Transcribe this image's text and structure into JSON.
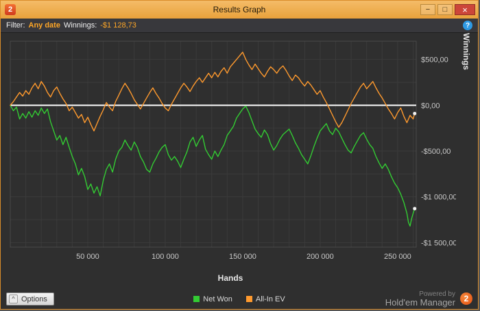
{
  "window": {
    "title": "Results Graph",
    "logo": "2",
    "buttons": {
      "minimize": "−",
      "maximize": "□",
      "close": "×"
    }
  },
  "filter_bar": {
    "filter_label": "Filter:",
    "date_value": "Any date",
    "winnings_label": "Winnings:",
    "winnings_value": "-$1 128,73",
    "help_icon": "?"
  },
  "chart_data": {
    "type": "line",
    "title": "",
    "xlabel": "Hands",
    "ylabel": "Winnings",
    "xlim": [
      0,
      262000
    ],
    "ylim": [
      -1550,
      700
    ],
    "grid": {
      "x_step": 10000,
      "y_step": 250,
      "color": "#3b3b3b"
    },
    "zero_line": {
      "value": 0,
      "color": "#ffffff"
    },
    "legend_position": "bottom",
    "x_ticks": [
      {
        "value": 50000,
        "label": "50 000"
      },
      {
        "value": 100000,
        "label": "100 000"
      },
      {
        "value": 150000,
        "label": "150 000"
      },
      {
        "value": 200000,
        "label": "200 000"
      },
      {
        "value": 250000,
        "label": "250 000"
      }
    ],
    "y_ticks": [
      {
        "value": 500,
        "label": "$500,00"
      },
      {
        "value": 0,
        "label": "$0,00"
      },
      {
        "value": -500,
        "label": "-$500,00"
      },
      {
        "value": -1000,
        "label": "-$1 000,00"
      },
      {
        "value": -1500,
        "label": "-$1 500,00"
      }
    ],
    "series": [
      {
        "name": "Net Won",
        "color": "#33cc33",
        "final_value": -1128.73,
        "points": [
          [
            0,
            0
          ],
          [
            2000,
            -60
          ],
          [
            4000,
            -20
          ],
          [
            6000,
            -150
          ],
          [
            8000,
            -90
          ],
          [
            10000,
            -140
          ],
          [
            12000,
            -70
          ],
          [
            14000,
            -130
          ],
          [
            16000,
            -60
          ],
          [
            18000,
            -110
          ],
          [
            20000,
            -30
          ],
          [
            22000,
            -90
          ],
          [
            24000,
            -40
          ],
          [
            26000,
            -180
          ],
          [
            28000,
            -280
          ],
          [
            30000,
            -380
          ],
          [
            32000,
            -330
          ],
          [
            34000,
            -430
          ],
          [
            36000,
            -350
          ],
          [
            38000,
            -460
          ],
          [
            40000,
            -560
          ],
          [
            42000,
            -640
          ],
          [
            44000,
            -760
          ],
          [
            46000,
            -690
          ],
          [
            48000,
            -780
          ],
          [
            50000,
            -920
          ],
          [
            52000,
            -860
          ],
          [
            54000,
            -960
          ],
          [
            56000,
            -890
          ],
          [
            58000,
            -990
          ],
          [
            60000,
            -820
          ],
          [
            62000,
            -700
          ],
          [
            64000,
            -640
          ],
          [
            66000,
            -730
          ],
          [
            68000,
            -590
          ],
          [
            70000,
            -500
          ],
          [
            72000,
            -460
          ],
          [
            74000,
            -380
          ],
          [
            76000,
            -440
          ],
          [
            78000,
            -490
          ],
          [
            80000,
            -400
          ],
          [
            82000,
            -460
          ],
          [
            84000,
            -560
          ],
          [
            86000,
            -620
          ],
          [
            88000,
            -700
          ],
          [
            90000,
            -730
          ],
          [
            92000,
            -640
          ],
          [
            94000,
            -580
          ],
          [
            96000,
            -510
          ],
          [
            98000,
            -460
          ],
          [
            100000,
            -430
          ],
          [
            102000,
            -540
          ],
          [
            104000,
            -600
          ],
          [
            106000,
            -560
          ],
          [
            108000,
            -610
          ],
          [
            110000,
            -680
          ],
          [
            112000,
            -590
          ],
          [
            114000,
            -510
          ],
          [
            116000,
            -400
          ],
          [
            118000,
            -350
          ],
          [
            120000,
            -450
          ],
          [
            122000,
            -380
          ],
          [
            124000,
            -330
          ],
          [
            126000,
            -480
          ],
          [
            128000,
            -540
          ],
          [
            130000,
            -590
          ],
          [
            132000,
            -500
          ],
          [
            134000,
            -560
          ],
          [
            136000,
            -490
          ],
          [
            138000,
            -430
          ],
          [
            140000,
            -330
          ],
          [
            142000,
            -280
          ],
          [
            144000,
            -230
          ],
          [
            146000,
            -140
          ],
          [
            148000,
            -90
          ],
          [
            150000,
            -40
          ],
          [
            152000,
            -10
          ],
          [
            154000,
            -80
          ],
          [
            156000,
            -170
          ],
          [
            158000,
            -260
          ],
          [
            160000,
            -310
          ],
          [
            162000,
            -350
          ],
          [
            164000,
            -270
          ],
          [
            166000,
            -320
          ],
          [
            168000,
            -420
          ],
          [
            170000,
            -490
          ],
          [
            172000,
            -440
          ],
          [
            174000,
            -370
          ],
          [
            176000,
            -320
          ],
          [
            178000,
            -290
          ],
          [
            180000,
            -260
          ],
          [
            182000,
            -330
          ],
          [
            184000,
            -410
          ],
          [
            186000,
            -470
          ],
          [
            188000,
            -540
          ],
          [
            190000,
            -590
          ],
          [
            192000,
            -640
          ],
          [
            194000,
            -550
          ],
          [
            196000,
            -450
          ],
          [
            198000,
            -360
          ],
          [
            200000,
            -280
          ],
          [
            202000,
            -240
          ],
          [
            204000,
            -200
          ],
          [
            206000,
            -280
          ],
          [
            208000,
            -320
          ],
          [
            210000,
            -250
          ],
          [
            212000,
            -290
          ],
          [
            214000,
            -360
          ],
          [
            216000,
            -430
          ],
          [
            218000,
            -490
          ],
          [
            220000,
            -520
          ],
          [
            222000,
            -450
          ],
          [
            224000,
            -390
          ],
          [
            226000,
            -330
          ],
          [
            228000,
            -300
          ],
          [
            230000,
            -370
          ],
          [
            232000,
            -430
          ],
          [
            234000,
            -470
          ],
          [
            236000,
            -560
          ],
          [
            238000,
            -630
          ],
          [
            240000,
            -690
          ],
          [
            242000,
            -640
          ],
          [
            244000,
            -700
          ],
          [
            246000,
            -780
          ],
          [
            248000,
            -850
          ],
          [
            250000,
            -900
          ],
          [
            252000,
            -970
          ],
          [
            254000,
            -1060
          ],
          [
            256000,
            -1180
          ],
          [
            257000,
            -1280
          ],
          [
            258000,
            -1320
          ],
          [
            259000,
            -1240
          ],
          [
            260000,
            -1180
          ],
          [
            261000,
            -1128.73
          ]
        ]
      },
      {
        "name": "All-In EV",
        "color": "#ff9a2e",
        "final_value": -90,
        "points": [
          [
            0,
            0
          ],
          [
            2000,
            40
          ],
          [
            4000,
            90
          ],
          [
            6000,
            140
          ],
          [
            8000,
            100
          ],
          [
            10000,
            160
          ],
          [
            12000,
            120
          ],
          [
            14000,
            190
          ],
          [
            16000,
            240
          ],
          [
            18000,
            180
          ],
          [
            20000,
            260
          ],
          [
            22000,
            210
          ],
          [
            24000,
            140
          ],
          [
            26000,
            90
          ],
          [
            28000,
            160
          ],
          [
            30000,
            200
          ],
          [
            32000,
            130
          ],
          [
            34000,
            70
          ],
          [
            36000,
            20
          ],
          [
            38000,
            -60
          ],
          [
            40000,
            -20
          ],
          [
            42000,
            -80
          ],
          [
            44000,
            -140
          ],
          [
            46000,
            -100
          ],
          [
            48000,
            -190
          ],
          [
            50000,
            -130
          ],
          [
            52000,
            -210
          ],
          [
            54000,
            -280
          ],
          [
            56000,
            -200
          ],
          [
            58000,
            -120
          ],
          [
            60000,
            -50
          ],
          [
            62000,
            30
          ],
          [
            64000,
            -20
          ],
          [
            66000,
            -60
          ],
          [
            68000,
            40
          ],
          [
            70000,
            110
          ],
          [
            72000,
            180
          ],
          [
            74000,
            240
          ],
          [
            76000,
            190
          ],
          [
            78000,
            130
          ],
          [
            80000,
            60
          ],
          [
            82000,
            10
          ],
          [
            84000,
            -40
          ],
          [
            86000,
            20
          ],
          [
            88000,
            80
          ],
          [
            90000,
            140
          ],
          [
            92000,
            190
          ],
          [
            94000,
            130
          ],
          [
            96000,
            80
          ],
          [
            98000,
            20
          ],
          [
            100000,
            -30
          ],
          [
            102000,
            -60
          ],
          [
            104000,
            10
          ],
          [
            106000,
            70
          ],
          [
            108000,
            130
          ],
          [
            110000,
            190
          ],
          [
            112000,
            240
          ],
          [
            114000,
            200
          ],
          [
            116000,
            150
          ],
          [
            118000,
            210
          ],
          [
            120000,
            260
          ],
          [
            122000,
            300
          ],
          [
            124000,
            250
          ],
          [
            126000,
            300
          ],
          [
            128000,
            350
          ],
          [
            130000,
            300
          ],
          [
            132000,
            360
          ],
          [
            134000,
            310
          ],
          [
            136000,
            370
          ],
          [
            138000,
            410
          ],
          [
            140000,
            350
          ],
          [
            142000,
            420
          ],
          [
            144000,
            460
          ],
          [
            146000,
            500
          ],
          [
            148000,
            540
          ],
          [
            150000,
            580
          ],
          [
            152000,
            500
          ],
          [
            154000,
            440
          ],
          [
            156000,
            390
          ],
          [
            158000,
            450
          ],
          [
            160000,
            400
          ],
          [
            162000,
            350
          ],
          [
            164000,
            310
          ],
          [
            166000,
            370
          ],
          [
            168000,
            420
          ],
          [
            170000,
            390
          ],
          [
            172000,
            350
          ],
          [
            174000,
            400
          ],
          [
            176000,
            430
          ],
          [
            178000,
            380
          ],
          [
            180000,
            320
          ],
          [
            182000,
            270
          ],
          [
            184000,
            330
          ],
          [
            186000,
            300
          ],
          [
            188000,
            250
          ],
          [
            190000,
            210
          ],
          [
            192000,
            260
          ],
          [
            194000,
            220
          ],
          [
            196000,
            170
          ],
          [
            198000,
            120
          ],
          [
            200000,
            160
          ],
          [
            202000,
            90
          ],
          [
            204000,
            30
          ],
          [
            206000,
            -40
          ],
          [
            208000,
            -110
          ],
          [
            210000,
            -180
          ],
          [
            212000,
            -240
          ],
          [
            214000,
            -190
          ],
          [
            216000,
            -120
          ],
          [
            218000,
            -50
          ],
          [
            220000,
            20
          ],
          [
            222000,
            80
          ],
          [
            224000,
            140
          ],
          [
            226000,
            200
          ],
          [
            228000,
            240
          ],
          [
            230000,
            180
          ],
          [
            232000,
            220
          ],
          [
            234000,
            260
          ],
          [
            236000,
            190
          ],
          [
            238000,
            130
          ],
          [
            240000,
            80
          ],
          [
            242000,
            20
          ],
          [
            244000,
            -40
          ],
          [
            246000,
            -90
          ],
          [
            248000,
            -150
          ],
          [
            250000,
            -80
          ],
          [
            252000,
            -30
          ],
          [
            254000,
            -120
          ],
          [
            256000,
            -190
          ],
          [
            258000,
            -110
          ],
          [
            260000,
            -150
          ],
          [
            261000,
            -90
          ]
        ]
      }
    ]
  },
  "bottom_bar": {
    "options_label": "Options",
    "collapse_icon": "^"
  },
  "powered_by": {
    "line1": "Powered by",
    "line2": "Hold'em Manager",
    "logo": "2"
  }
}
